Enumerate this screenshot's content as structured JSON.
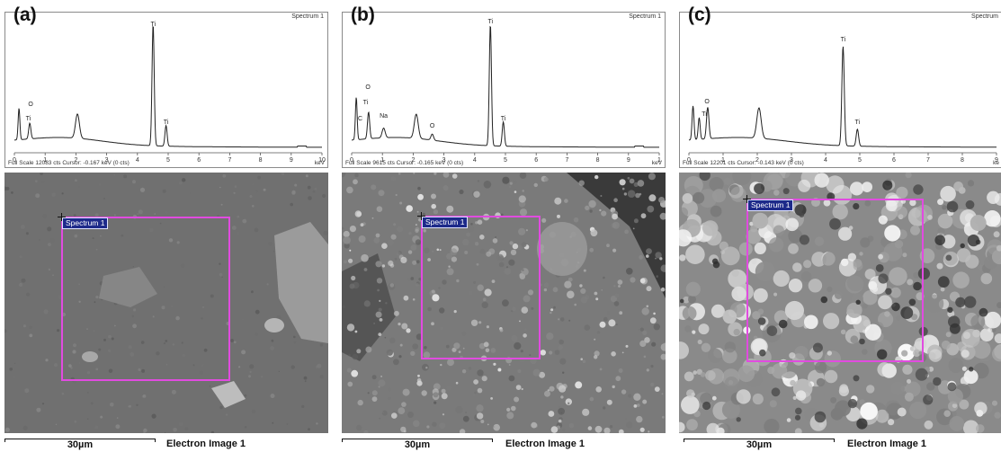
{
  "panels": [
    {
      "label": "(a)",
      "spectrum_title": "Spectrum 1",
      "footer": "Full Scale 12083 cts  Cursor: -0.167 keV (0 cts)",
      "axis_unit": "keV",
      "ticks": [
        "0",
        "1",
        "2",
        "3",
        "4",
        "5",
        "6",
        "7",
        "8",
        "9",
        "10"
      ],
      "peak_labels": [
        {
          "text": "O",
          "kev": 0.53,
          "level": 0.32
        },
        {
          "text": "Ti",
          "kev": 0.45,
          "level": 0.2
        },
        {
          "text": "Ti",
          "kev": 4.51,
          "level": 0.98
        },
        {
          "text": "Ti",
          "kev": 4.93,
          "level": 0.17
        }
      ],
      "roi_label": "Spectrum 1",
      "scale_label": "30µm",
      "image_label": "Electron Image 1",
      "texture": "smooth"
    },
    {
      "label": "(b)",
      "spectrum_title": "Spectrum 1",
      "footer": "Full Scale 9615 cts  Cursor: -0.165 keV (0 cts)",
      "axis_unit": "keV",
      "ticks": [
        "0",
        "1",
        "2",
        "3",
        "4",
        "5",
        "6",
        "7",
        "8",
        "9",
        "1"
      ],
      "peak_labels": [
        {
          "text": "O",
          "kev": 0.53,
          "level": 0.46
        },
        {
          "text": "Ti",
          "kev": 0.45,
          "level": 0.33
        },
        {
          "text": "C",
          "kev": 0.28,
          "level": 0.2
        },
        {
          "text": "Na",
          "kev": 1.04,
          "level": 0.22
        },
        {
          "text": "O",
          "kev": 2.62,
          "level": 0.14
        },
        {
          "text": "Ti",
          "kev": 4.51,
          "level": 1.0
        },
        {
          "text": "Ti",
          "kev": 4.93,
          "level": 0.2
        }
      ],
      "roi_label": "Spectrum 1",
      "scale_label": "30µm",
      "image_label": "Electron Image 1",
      "texture": "rough"
    },
    {
      "label": "(c)",
      "spectrum_title": "Spectrum",
      "footer": "Full Scale 12201 cts  Cursor: -0.143 keV (0 cts)",
      "axis_unit": "ke",
      "ticks": [
        "0",
        "1",
        "2",
        "3",
        "4",
        "5",
        "6",
        "7",
        "8",
        "9"
      ],
      "peak_labels": [
        {
          "text": "O",
          "kev": 0.53,
          "level": 0.34
        },
        {
          "text": "Ti",
          "kev": 0.45,
          "level": 0.24
        },
        {
          "text": "Ti",
          "kev": 4.51,
          "level": 0.85
        },
        {
          "text": "Ti",
          "kev": 4.93,
          "level": 0.17
        }
      ],
      "roi_label": "Spectrum 1",
      "scale_label": "30µm",
      "image_label": "Electron Image 1",
      "texture": "particulate"
    }
  ],
  "colors": {
    "roi": "#e14be0",
    "roi_tag_bg": "#1d2a8a",
    "sem_mid": "#6f6f6f"
  }
}
